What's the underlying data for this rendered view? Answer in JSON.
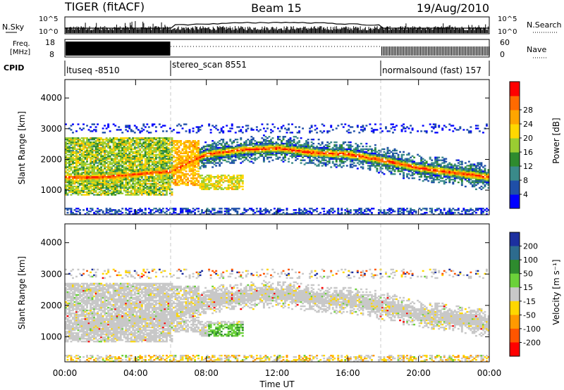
{
  "header": {
    "station": "TIGER (fitACF)",
    "beam": "Beam 15",
    "date": "19/Aug/2010"
  },
  "strip_nsky": {
    "left_label": "N.Sky",
    "right_label": "N.Search",
    "left_ticks": [
      "10^5",
      "10^0"
    ],
    "right_ticks": [
      "10^5",
      "10^0"
    ]
  },
  "strip_freq": {
    "left_label_1": "Freq.",
    "left_label_2": "[MHz]",
    "left_ticks": [
      "18",
      "8"
    ],
    "right_label": "Nave",
    "right_ticks": [
      "60",
      "0"
    ]
  },
  "cpid": {
    "label": "CPID",
    "segments": [
      {
        "text": "ltuseq -8510",
        "start_h": 0,
        "end_h": 6.0
      },
      {
        "text": "stereo_scan 8551",
        "start_h": 6.0,
        "end_h": 18.0
      },
      {
        "text": "normalsound (fast) 157",
        "start_h": 18.0,
        "end_h": 24.0
      }
    ]
  },
  "chart_data": [
    {
      "type": "heatmap",
      "name": "power-panel",
      "ylabel": "Slant Range [km]",
      "xlabel": "",
      "y_ticks": [
        "1000",
        "2000",
        "3000",
        "4000"
      ],
      "ylim": [
        200,
        4600
      ],
      "colorbar": {
        "label": "Power [dB]",
        "ticks": [
          "4",
          "8",
          "12",
          "16",
          "20",
          "24",
          "28"
        ],
        "colors": [
          "#0000ff",
          "#1f4fa8",
          "#3a8a8a",
          "#2e8b2e",
          "#9acd32",
          "#ffd700",
          "#ffa500",
          "#ff6a00",
          "#ff0000"
        ]
      },
      "band_center_km": [
        [
          0,
          1400
        ],
        [
          2,
          1400
        ],
        [
          4,
          1500
        ],
        [
          6,
          1600
        ],
        [
          7,
          1900
        ],
        [
          8,
          2150
        ],
        [
          10,
          2300
        ],
        [
          12,
          2350
        ],
        [
          14,
          2200
        ],
        [
          16,
          2150
        ],
        [
          18,
          1950
        ],
        [
          20,
          1700
        ],
        [
          22,
          1550
        ],
        [
          24,
          1400
        ]
      ]
    },
    {
      "type": "heatmap",
      "name": "velocity-panel",
      "ylabel": "Slant Range [km]",
      "xlabel": "Time UT",
      "y_ticks": [
        "1000",
        "2000",
        "3000",
        "4000"
      ],
      "ylim": [
        200,
        4600
      ],
      "x_ticks": [
        "00:00",
        "04:00",
        "08:00",
        "12:00",
        "16:00",
        "20:00",
        "00:00"
      ],
      "colorbar": {
        "label": "Velocity [m s⁻¹]",
        "ticks": [
          "200",
          "100",
          "50",
          "15",
          "-15",
          "-50",
          "-100",
          "-200"
        ],
        "colors": [
          "#1c2f9f",
          "#2d6b8e",
          "#2e8b2e",
          "#6bd13a",
          "#c8c8c8",
          "#ffd700",
          "#ff9900",
          "#ff5500",
          "#ff0000"
        ]
      }
    }
  ]
}
